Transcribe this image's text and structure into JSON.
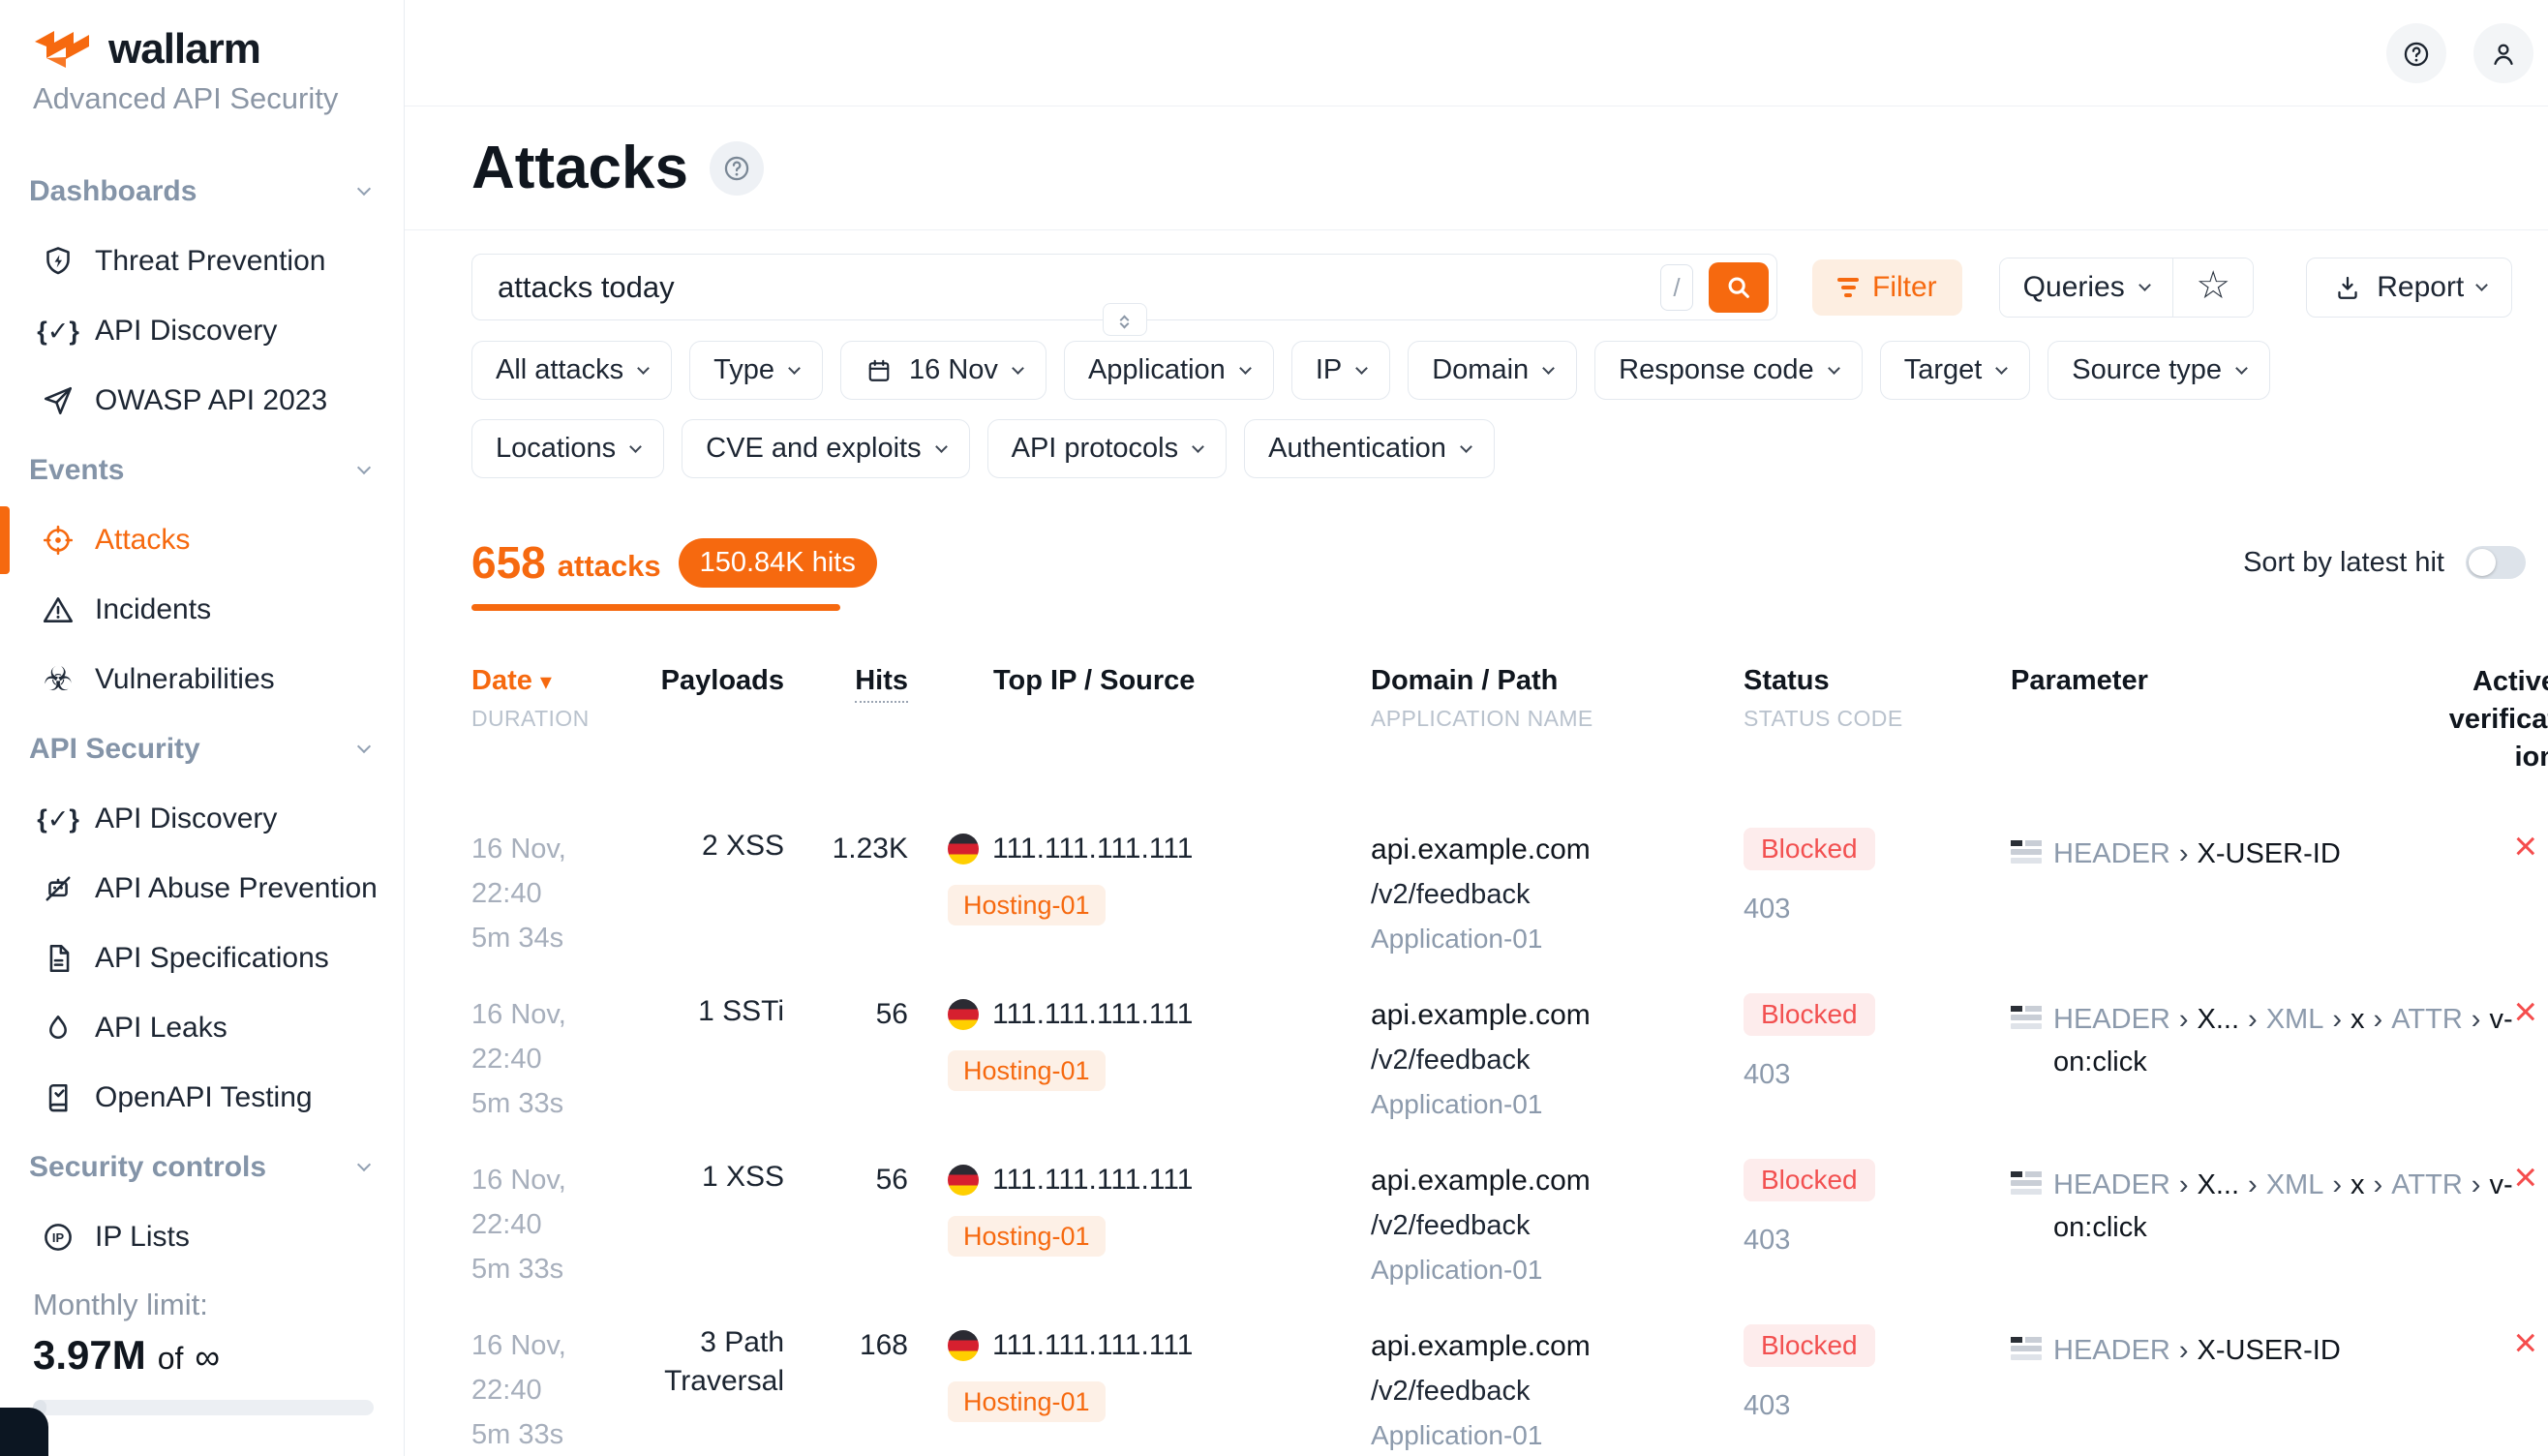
{
  "colors": {
    "accent": "#f6690f",
    "blocked_text": "#f25050",
    "blocked_bg": "#fdecec",
    "tag_bg": "#fdf0e6"
  },
  "brand": {
    "name": "wallarm",
    "subtitle": "Advanced API Security"
  },
  "sidebar": {
    "sections": [
      {
        "label": "Dashboards",
        "items": [
          {
            "icon": "shield-bolt",
            "label": "Threat Prevention"
          },
          {
            "icon": "braces-check",
            "label": "API Discovery"
          },
          {
            "icon": "paper-plane",
            "label": "OWASP API 2023"
          }
        ]
      },
      {
        "label": "Events",
        "items": [
          {
            "icon": "target",
            "label": "Attacks",
            "active": true
          },
          {
            "icon": "warning-triangle",
            "label": "Incidents"
          },
          {
            "icon": "biohazard",
            "label": "Vulnerabilities"
          }
        ]
      },
      {
        "label": "API Security",
        "items": [
          {
            "icon": "braces-check",
            "label": "API Discovery"
          },
          {
            "icon": "robot-off",
            "label": "API Abuse Prevention"
          },
          {
            "icon": "document",
            "label": "API Specifications"
          },
          {
            "icon": "droplet",
            "label": "API Leaks"
          },
          {
            "icon": "book-check",
            "label": "OpenAPI Testing"
          }
        ]
      },
      {
        "label": "Security controls",
        "items": [
          {
            "icon": "ip-circle",
            "label": "IP Lists"
          }
        ]
      }
    ],
    "monthly_limit": {
      "label": "Monthly limit:",
      "used": "3.97M",
      "of_label": "of",
      "total": "∞"
    }
  },
  "header": {
    "title": "Attacks"
  },
  "toolbar": {
    "search_value": "attacks today",
    "search_shortcut": "/",
    "filter_label": "Filter",
    "queries_label": "Queries",
    "report_label": "Report"
  },
  "filters": {
    "row1": [
      {
        "label": "All attacks"
      },
      {
        "label": "Type"
      },
      {
        "label": "16 Nov",
        "icon": "calendar"
      },
      {
        "label": "Application"
      },
      {
        "label": "IP"
      },
      {
        "label": "Domain"
      },
      {
        "label": "Response code"
      },
      {
        "label": "Target"
      },
      {
        "label": "Source type"
      }
    ],
    "row2": [
      {
        "label": "Locations"
      },
      {
        "label": "CVE and exploits"
      },
      {
        "label": "API protocols"
      },
      {
        "label": "Authentication"
      }
    ]
  },
  "summary": {
    "count": "658",
    "count_label": "attacks",
    "hits_badge": "150.84K hits",
    "sort_label": "Sort by latest hit",
    "sort_on": false
  },
  "table": {
    "headers": {
      "date": "Date",
      "date_sub": "DURATION",
      "payloads": "Payloads",
      "hits": "Hits",
      "source": "Top IP / Source",
      "domain": "Domain / Path",
      "domain_sub": "APPLICATION NAME",
      "status": "Status",
      "status_sub": "STATUS CODE",
      "parameter": "Parameter",
      "active_verification": "Active verification"
    },
    "rows": [
      {
        "date": "16 Nov,",
        "time": "22:40",
        "duration": "5m 34s",
        "payloads": "2 XSS",
        "hits": "1.23K",
        "flag": "germany",
        "ip": "111.111.111.111",
        "source_tag": "Hosting-01",
        "domain": "api.example.com",
        "path": "/v2/feedback",
        "application": "Application-01",
        "status": "Blocked",
        "status_code": "403",
        "verification_icon": "x-mark",
        "parameter": [
          {
            "text": "HEADER",
            "muted": true
          },
          {
            "text": "X-USER-ID",
            "muted": false
          }
        ]
      },
      {
        "date": "16 Nov,",
        "time": "22:40",
        "duration": "5m 33s",
        "payloads": "1 SSTi",
        "hits": "56",
        "flag": "germany",
        "ip": "111.111.111.111",
        "source_tag": "Hosting-01",
        "domain": "api.example.com",
        "path": "/v2/feedback",
        "application": "Application-01",
        "status": "Blocked",
        "status_code": "403",
        "verification_icon": "x-mark",
        "parameter": [
          {
            "text": "HEADER",
            "muted": true
          },
          {
            "text": "X...",
            "muted": false
          },
          {
            "text": "XML",
            "muted": true
          },
          {
            "text": "x",
            "muted": false
          },
          {
            "text": "ATTR",
            "muted": true
          },
          {
            "text": "v-on:click",
            "muted": false
          }
        ]
      },
      {
        "date": "16 Nov,",
        "time": "22:40",
        "duration": "5m 33s",
        "payloads": "1 XSS",
        "hits": "56",
        "flag": "germany",
        "ip": "111.111.111.111",
        "source_tag": "Hosting-01",
        "domain": "api.example.com",
        "path": "/v2/feedback",
        "application": "Application-01",
        "status": "Blocked",
        "status_code": "403",
        "verification_icon": "x-mark",
        "parameter": [
          {
            "text": "HEADER",
            "muted": true
          },
          {
            "text": "X...",
            "muted": false
          },
          {
            "text": "XML",
            "muted": true
          },
          {
            "text": "x",
            "muted": false
          },
          {
            "text": "ATTR",
            "muted": true
          },
          {
            "text": "v-on:click",
            "muted": false
          }
        ]
      },
      {
        "date": "16 Nov,",
        "time": "22:40",
        "duration": "5m 33s",
        "payloads": "3 Path Traversal",
        "hits": "168",
        "flag": "germany",
        "ip": "111.111.111.111",
        "source_tag": "Hosting-01",
        "domain": "api.example.com",
        "path": "/v2/feedback",
        "application": "Application-01",
        "status": "Blocked",
        "status_code": "403",
        "verification_icon": "x-mark",
        "parameter": [
          {
            "text": "HEADER",
            "muted": true
          },
          {
            "text": "X-USER-ID",
            "muted": false
          }
        ]
      }
    ]
  }
}
